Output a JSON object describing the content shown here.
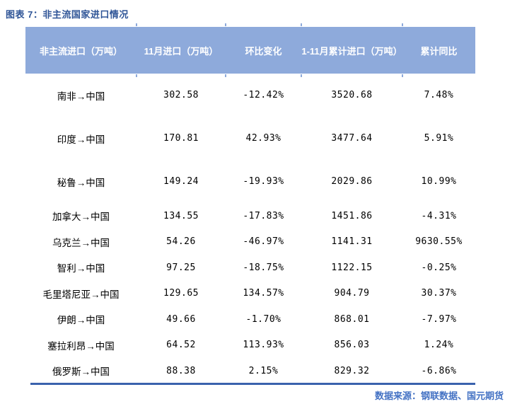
{
  "title": "图表 7：非主流国家进口情况",
  "table": {
    "headers": [
      "非主流进口（万吨）",
      "11月进口（万吨）",
      "环比变化",
      "1-11月累计进口（万吨）",
      "累计同比"
    ],
    "rows": [
      [
        "南非→中国",
        "302.58",
        "-12.42%",
        "3520.68",
        "7.48%"
      ],
      [
        "印度→中国",
        "170.81",
        "42.93%",
        "3477.64",
        "5.91%"
      ],
      [
        "秘鲁→中国",
        "149.24",
        "-19.93%",
        "2029.86",
        "10.99%"
      ],
      [
        "加拿大→中国",
        "134.55",
        "-17.83%",
        "1451.86",
        "-4.31%"
      ],
      [
        "乌克兰→中国",
        "54.26",
        "-46.97%",
        "1141.31",
        "9630.55%"
      ],
      [
        "智利→中国",
        "97.25",
        "-18.75%",
        "1122.15",
        "-0.25%"
      ],
      [
        "毛里塔尼亚→中国",
        "129.65",
        "134.57%",
        "904.79",
        "30.37%"
      ],
      [
        "伊朗→中国",
        "49.66",
        "-1.70%",
        "868.01",
        "-7.97%"
      ],
      [
        "塞拉利昂→中国",
        "64.52",
        "113.93%",
        "856.03",
        "1.24%"
      ],
      [
        "俄罗斯→中国",
        "88.38",
        "2.15%",
        "829.32",
        "-6.86%"
      ]
    ]
  },
  "footer": {
    "source": "数据来源：钢联数据、国元期货"
  },
  "colors": {
    "header_bg": "#8EAADB",
    "title_text": "#2F5597",
    "accent_line": "#3A62AD",
    "source_text": "#4472C4"
  }
}
